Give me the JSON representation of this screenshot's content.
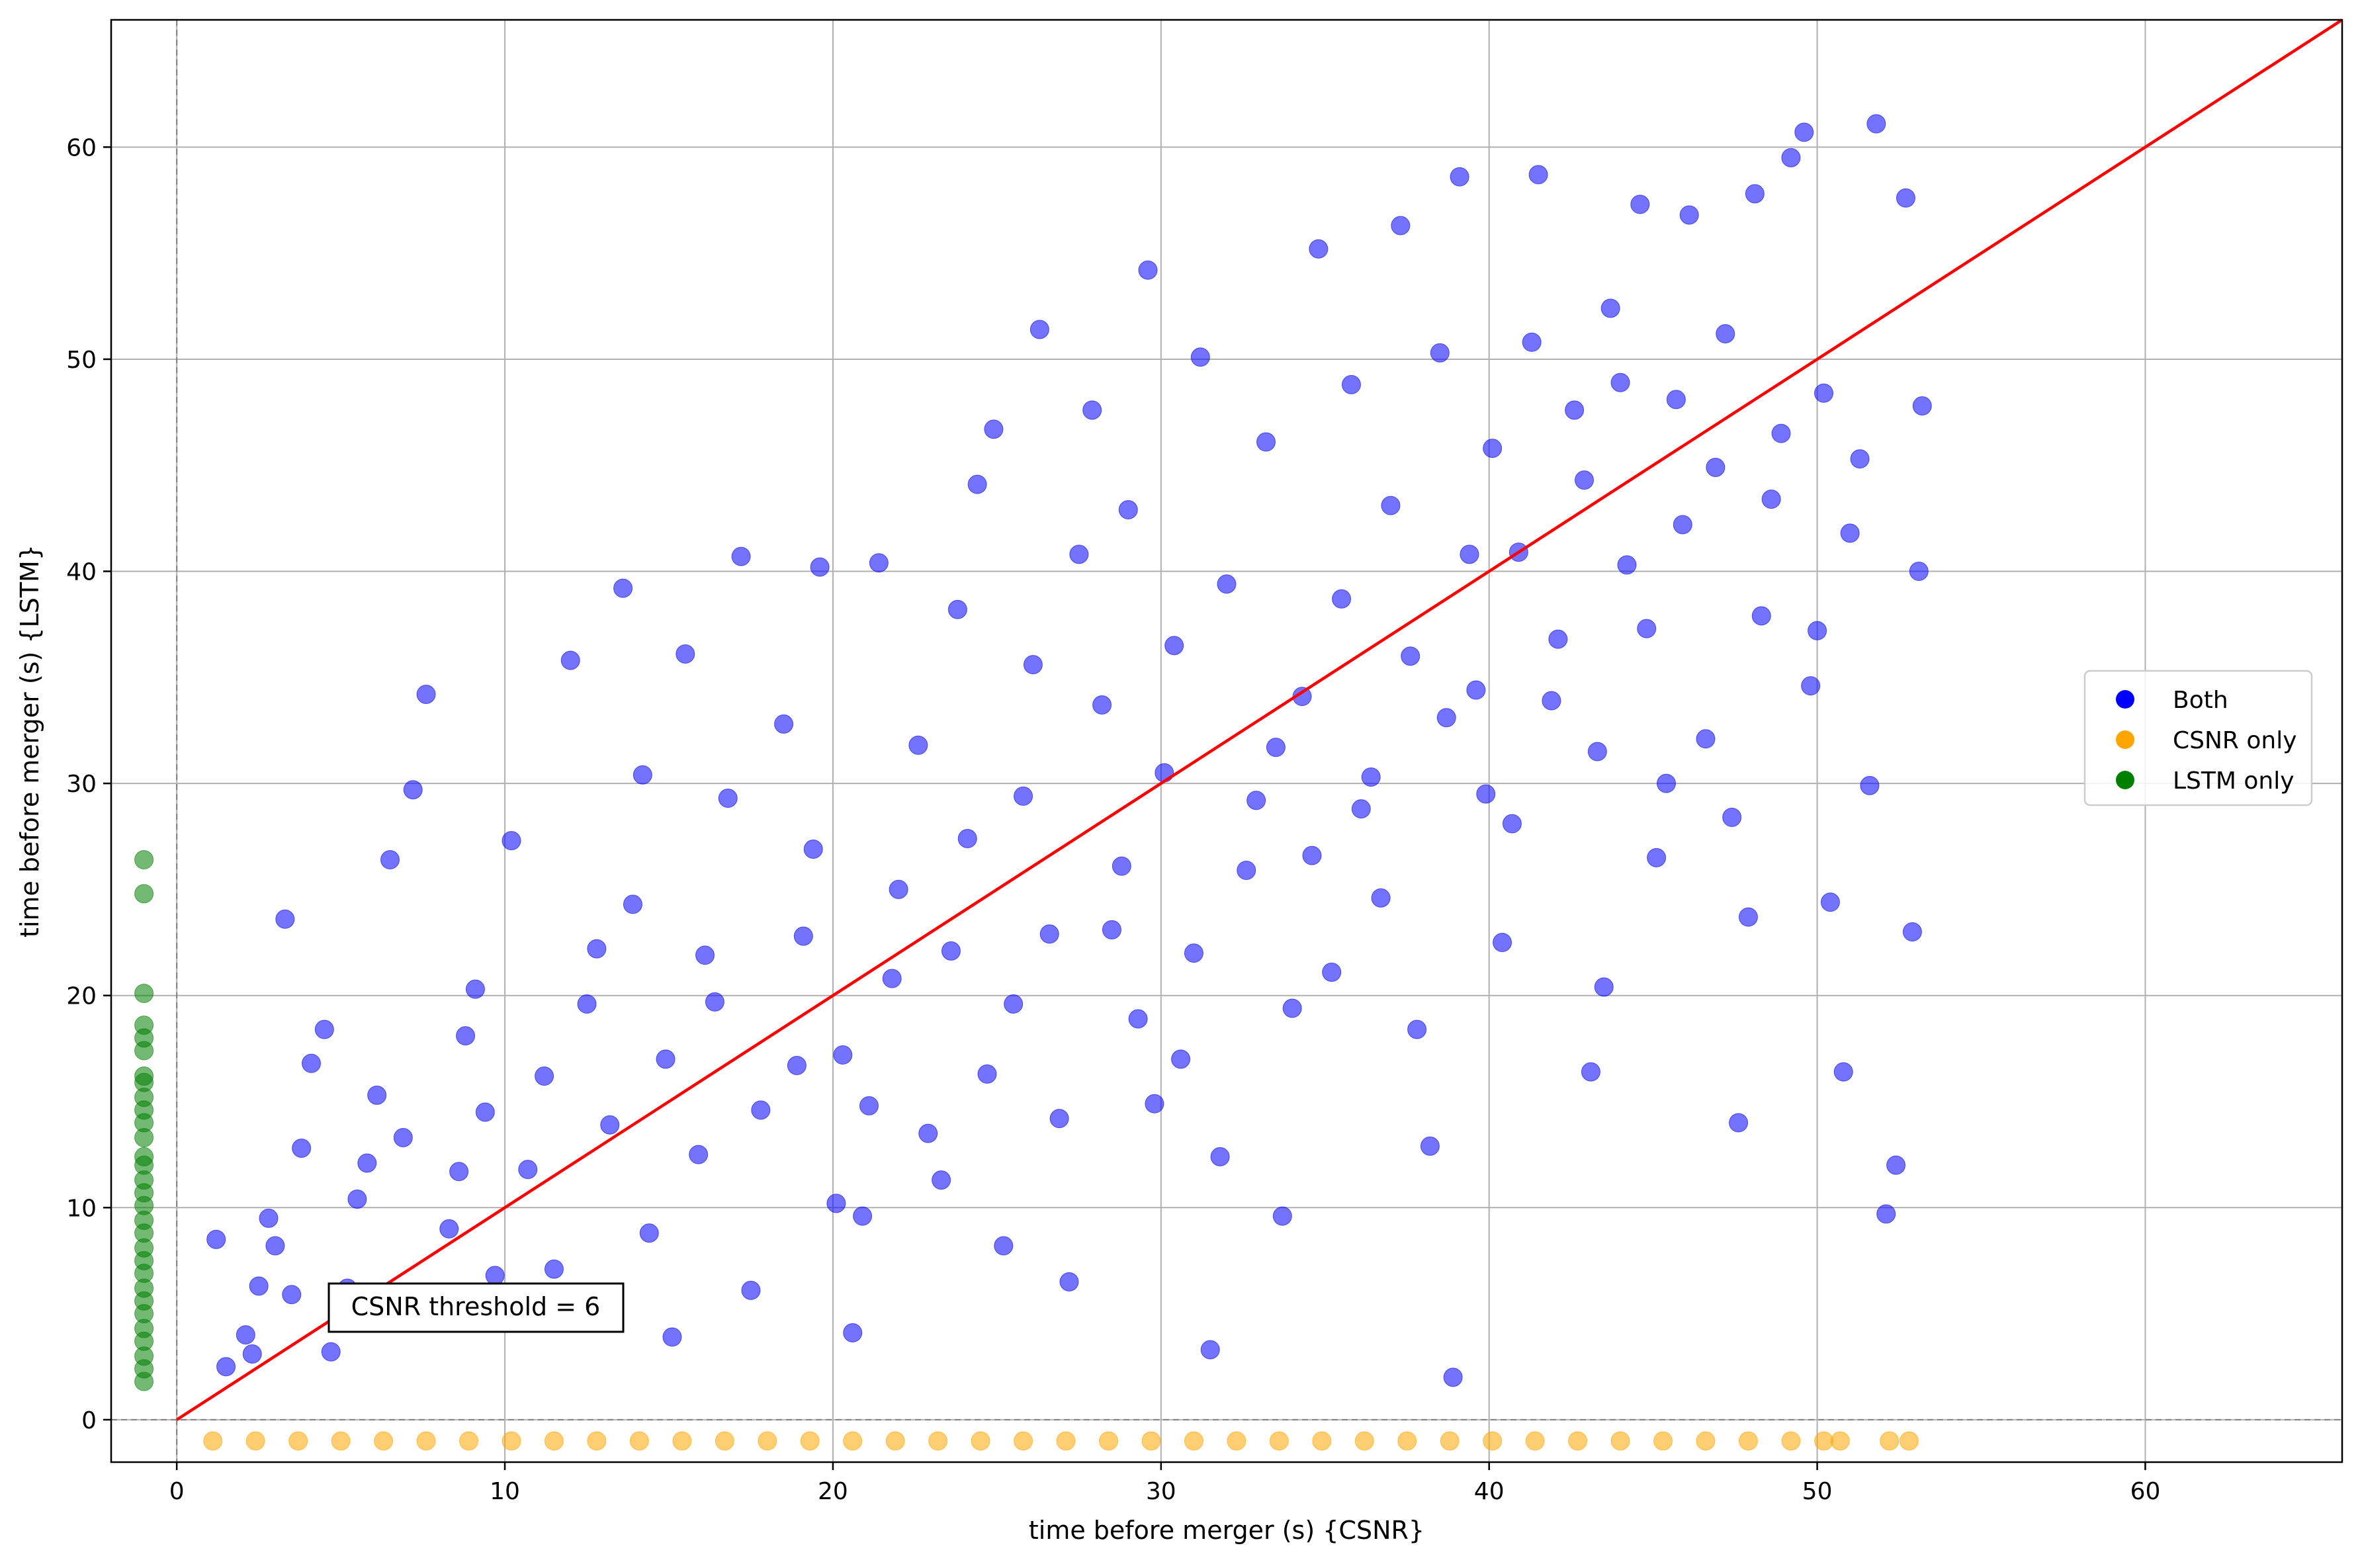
{
  "chart_data": {
    "type": "scatter",
    "title": "",
    "xlabel": "time before merger (s) {CSNR}",
    "ylabel": "time before merger (s) {LSTM}",
    "xlim": [
      -2,
      66
    ],
    "ylim": [
      -2,
      66
    ],
    "xticks": [
      0,
      10,
      20,
      30,
      40,
      50,
      60
    ],
    "yticks": [
      0,
      10,
      20,
      30,
      40,
      50,
      60
    ],
    "x_tick_labels": [
      "0",
      "10",
      "20",
      "30",
      "40",
      "50",
      "60"
    ],
    "y_tick_labels": [
      "0",
      "10",
      "20",
      "30",
      "40",
      "50",
      "60"
    ],
    "grid": true,
    "legend_position": "center-right",
    "legend": [
      {
        "label": "Both",
        "color": "#0000ff"
      },
      {
        "label": "CSNR only",
        "color": "#ffa500"
      },
      {
        "label": "LSTM only",
        "color": "#008000"
      }
    ],
    "annotation": "CSNR threshold = 6",
    "reference_line": {
      "from": [
        0,
        0
      ],
      "to": [
        66,
        66
      ],
      "color": "#ff0000"
    },
    "dashed_lines": {
      "x": 0,
      "y": 0,
      "color": "#808080"
    },
    "series": [
      {
        "name": "Both",
        "color": "#0000ff",
        "points": [
          [
            1.2,
            8.5
          ],
          [
            1.5,
            2.5
          ],
          [
            2.1,
            4.0
          ],
          [
            2.5,
            6.3
          ],
          [
            3.0,
            8.2
          ],
          [
            3.3,
            23.6
          ],
          [
            3.8,
            12.8
          ],
          [
            4.1,
            16.8
          ],
          [
            4.5,
            18.4
          ],
          [
            5.2,
            6.2
          ],
          [
            5.8,
            12.1
          ],
          [
            6.5,
            26.4
          ],
          [
            6.9,
            13.3
          ],
          [
            7.2,
            29.7
          ],
          [
            7.6,
            34.2
          ],
          [
            8.3,
            9.0
          ],
          [
            8.8,
            18.1
          ],
          [
            9.4,
            14.5
          ],
          [
            10.2,
            27.3
          ],
          [
            10.7,
            11.8
          ],
          [
            11.5,
            7.1
          ],
          [
            12.0,
            35.8
          ],
          [
            12.5,
            19.6
          ],
          [
            13.2,
            13.9
          ],
          [
            13.6,
            39.2
          ],
          [
            14.2,
            30.4
          ],
          [
            14.9,
            17.0
          ],
          [
            15.5,
            36.1
          ],
          [
            16.1,
            21.9
          ],
          [
            16.8,
            29.3
          ],
          [
            17.2,
            40.7
          ],
          [
            17.8,
            14.6
          ],
          [
            18.5,
            32.8
          ],
          [
            19.1,
            22.8
          ],
          [
            19.6,
            40.2
          ],
          [
            20.3,
            17.2
          ],
          [
            20.9,
            9.6
          ],
          [
            21.4,
            40.4
          ],
          [
            22.0,
            25.0
          ],
          [
            22.6,
            31.8
          ],
          [
            23.3,
            11.3
          ],
          [
            23.8,
            38.2
          ],
          [
            24.4,
            44.1
          ],
          [
            24.9,
            46.7
          ],
          [
            25.5,
            19.6
          ],
          [
            26.1,
            35.6
          ],
          [
            26.3,
            51.4
          ],
          [
            26.9,
            14.2
          ],
          [
            27.5,
            40.8
          ],
          [
            27.9,
            47.6
          ],
          [
            28.5,
            23.1
          ],
          [
            29.0,
            42.9
          ],
          [
            29.6,
            54.2
          ],
          [
            30.1,
            30.5
          ],
          [
            30.6,
            17.0
          ],
          [
            31.2,
            50.1
          ],
          [
            31.5,
            3.3
          ],
          [
            32.0,
            39.4
          ],
          [
            32.6,
            25.9
          ],
          [
            33.2,
            46.1
          ],
          [
            33.7,
            9.6
          ],
          [
            34.3,
            34.1
          ],
          [
            34.8,
            55.2
          ],
          [
            35.2,
            21.1
          ],
          [
            35.8,
            48.8
          ],
          [
            36.4,
            30.3
          ],
          [
            37.0,
            43.1
          ],
          [
            37.3,
            56.3
          ],
          [
            37.8,
            18.4
          ],
          [
            38.5,
            50.3
          ],
          [
            38.9,
            2.0
          ],
          [
            39.1,
            58.6
          ],
          [
            39.6,
            34.4
          ],
          [
            40.1,
            45.8
          ],
          [
            40.7,
            28.1
          ],
          [
            41.3,
            50.8
          ],
          [
            41.5,
            58.7
          ],
          [
            42.1,
            36.8
          ],
          [
            42.6,
            47.6
          ],
          [
            43.1,
            16.4
          ],
          [
            43.7,
            52.4
          ],
          [
            44.2,
            40.3
          ],
          [
            44.6,
            57.3
          ],
          [
            45.1,
            26.5
          ],
          [
            45.7,
            48.1
          ],
          [
            46.1,
            56.8
          ],
          [
            46.6,
            32.1
          ],
          [
            47.2,
            51.2
          ],
          [
            47.6,
            14.0
          ],
          [
            48.1,
            57.8
          ],
          [
            48.6,
            43.4
          ],
          [
            49.2,
            59.5
          ],
          [
            49.6,
            60.7
          ],
          [
            50.0,
            37.2
          ],
          [
            50.4,
            24.4
          ],
          [
            50.8,
            16.4
          ],
          [
            51.3,
            45.3
          ],
          [
            51.8,
            61.1
          ],
          [
            52.1,
            9.7
          ],
          [
            52.4,
            12.0
          ],
          [
            52.7,
            57.6
          ],
          [
            52.9,
            23.0
          ],
          [
            53.1,
            40.0
          ],
          [
            53.2,
            47.8
          ],
          [
            2.8,
            9.5
          ],
          [
            4.7,
            3.2
          ],
          [
            6.1,
            15.3
          ],
          [
            7.9,
            5.4
          ],
          [
            9.1,
            20.3
          ],
          [
            10.9,
            4.9
          ],
          [
            12.8,
            22.2
          ],
          [
            14.4,
            8.8
          ],
          [
            15.9,
            12.5
          ],
          [
            17.5,
            6.1
          ],
          [
            18.9,
            16.7
          ],
          [
            20.6,
            4.1
          ],
          [
            21.8,
            20.8
          ],
          [
            22.9,
            13.5
          ],
          [
            24.1,
            27.4
          ],
          [
            25.2,
            8.2
          ],
          [
            26.6,
            22.9
          ],
          [
            27.2,
            6.5
          ],
          [
            28.2,
            33.7
          ],
          [
            29.3,
            18.9
          ],
          [
            30.4,
            36.5
          ],
          [
            31.8,
            12.4
          ],
          [
            32.9,
            29.2
          ],
          [
            34.0,
            19.4
          ],
          [
            35.5,
            38.7
          ],
          [
            36.7,
            24.6
          ],
          [
            37.6,
            36.0
          ],
          [
            38.2,
            12.9
          ],
          [
            39.4,
            40.8
          ],
          [
            40.4,
            22.5
          ],
          [
            41.9,
            33.9
          ],
          [
            42.9,
            44.3
          ],
          [
            43.5,
            20.4
          ],
          [
            44.8,
            37.3
          ],
          [
            45.4,
            30.0
          ],
          [
            46.9,
            44.9
          ],
          [
            47.9,
            23.7
          ],
          [
            48.9,
            46.5
          ],
          [
            49.8,
            34.6
          ],
          [
            51.0,
            41.8
          ],
          [
            51.6,
            29.9
          ],
          [
            3.5,
            5.9
          ],
          [
            5.5,
            10.4
          ],
          [
            8.6,
            11.7
          ],
          [
            11.2,
            16.2
          ],
          [
            13.9,
            24.3
          ],
          [
            16.4,
            19.7
          ],
          [
            19.4,
            26.9
          ],
          [
            21.1,
            14.8
          ],
          [
            23.6,
            22.1
          ],
          [
            25.8,
            29.4
          ],
          [
            28.8,
            26.1
          ],
          [
            31.0,
            22.0
          ],
          [
            33.5,
            31.7
          ],
          [
            36.1,
            28.8
          ],
          [
            38.7,
            33.1
          ],
          [
            40.9,
            40.9
          ],
          [
            43.3,
            31.5
          ],
          [
            45.9,
            42.2
          ],
          [
            48.3,
            37.9
          ],
          [
            50.2,
            48.4
          ],
          [
            2.3,
            3.1
          ],
          [
            9.7,
            6.8
          ],
          [
            15.1,
            3.9
          ],
          [
            20.1,
            10.2
          ],
          [
            24.7,
            16.3
          ],
          [
            29.8,
            14.9
          ],
          [
            34.6,
            26.6
          ],
          [
            39.9,
            29.5
          ],
          [
            44.0,
            48.9
          ],
          [
            47.4,
            28.4
          ]
        ]
      },
      {
        "name": "CSNR only",
        "color": "#ffa500",
        "points": [
          [
            1.1,
            -1
          ],
          [
            2.4,
            -1
          ],
          [
            3.7,
            -1
          ],
          [
            5.0,
            -1
          ],
          [
            6.3,
            -1
          ],
          [
            7.6,
            -1
          ],
          [
            8.9,
            -1
          ],
          [
            10.2,
            -1
          ],
          [
            11.5,
            -1
          ],
          [
            12.8,
            -1
          ],
          [
            14.1,
            -1
          ],
          [
            15.4,
            -1
          ],
          [
            16.7,
            -1
          ],
          [
            18.0,
            -1
          ],
          [
            19.3,
            -1
          ],
          [
            20.6,
            -1
          ],
          [
            21.9,
            -1
          ],
          [
            23.2,
            -1
          ],
          [
            24.5,
            -1
          ],
          [
            25.8,
            -1
          ],
          [
            27.1,
            -1
          ],
          [
            28.4,
            -1
          ],
          [
            29.7,
            -1
          ],
          [
            31.0,
            -1
          ],
          [
            32.3,
            -1
          ],
          [
            33.6,
            -1
          ],
          [
            34.9,
            -1
          ],
          [
            36.2,
            -1
          ],
          [
            37.5,
            -1
          ],
          [
            38.8,
            -1
          ],
          [
            40.1,
            -1
          ],
          [
            41.4,
            -1
          ],
          [
            42.7,
            -1
          ],
          [
            44.0,
            -1
          ],
          [
            45.3,
            -1
          ],
          [
            46.6,
            -1
          ],
          [
            47.9,
            -1
          ],
          [
            49.2,
            -1
          ],
          [
            50.2,
            -1
          ],
          [
            50.7,
            -1
          ],
          [
            52.2,
            -1
          ],
          [
            52.8,
            -1
          ]
        ]
      },
      {
        "name": "LSTM only",
        "color": "#008000",
        "points": [
          [
            -1,
            1.8
          ],
          [
            -1,
            2.4
          ],
          [
            -1,
            3.0
          ],
          [
            -1,
            3.7
          ],
          [
            -1,
            4.3
          ],
          [
            -1,
            5.0
          ],
          [
            -1,
            5.6
          ],
          [
            -1,
            6.2
          ],
          [
            -1,
            6.9
          ],
          [
            -1,
            7.5
          ],
          [
            -1,
            8.1
          ],
          [
            -1,
            8.8
          ],
          [
            -1,
            9.4
          ],
          [
            -1,
            10.1
          ],
          [
            -1,
            10.7
          ],
          [
            -1,
            11.3
          ],
          [
            -1,
            12.0
          ],
          [
            -1,
            12.4
          ],
          [
            -1,
            13.3
          ],
          [
            -1,
            14.0
          ],
          [
            -1,
            14.6
          ],
          [
            -1,
            15.2
          ],
          [
            -1,
            15.9
          ],
          [
            -1,
            16.2
          ],
          [
            -1,
            17.4
          ],
          [
            -1,
            18.0
          ],
          [
            -1,
            18.6
          ],
          [
            -1,
            20.1
          ],
          [
            -1,
            24.8
          ],
          [
            -1,
            26.4
          ]
        ]
      }
    ]
  }
}
